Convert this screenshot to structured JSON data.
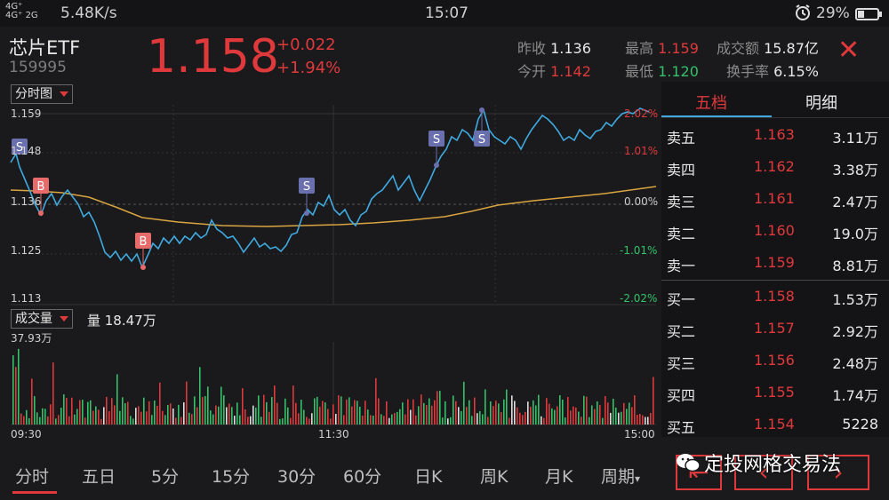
{
  "status_bar": {
    "signal": "4G⁺ 4G⁺ 2G",
    "speed": "5.48K/s",
    "time": "15:07",
    "alarm_icon": "alarm-icon",
    "battery": "29%"
  },
  "header": {
    "name": "芯片ETF",
    "code": "159995",
    "price": "1.158",
    "change": "+0.022",
    "change_pct": "+1.94%",
    "prev_close_label": "昨收",
    "prev_close": "1.136",
    "open_label": "今开",
    "open": "1.142",
    "high_label": "最高",
    "high": "1.159",
    "low_label": "最低",
    "low": "1.120",
    "turnover_label": "成交额",
    "turnover": "15.87亿",
    "turnover_rate_label": "换手率",
    "turnover_rate": "6.15%"
  },
  "chart": {
    "mode_label": "分时图",
    "y_labels": [
      "1.159",
      "1.148",
      "1.136",
      "1.125",
      "1.113"
    ],
    "pct_labels": [
      "2.02%",
      "1.01%",
      "0.00%",
      "-1.01%",
      "-2.02%"
    ],
    "volume_label": "成交量",
    "volume_value": "量 18.47万",
    "volume_max": "37.93万",
    "time_labels": [
      "09:30",
      "11:30",
      "15:00"
    ],
    "markers": [
      {
        "label": "S",
        "type": "sell"
      },
      {
        "label": "B",
        "type": "buy"
      },
      {
        "label": "B",
        "type": "buy"
      },
      {
        "label": "S",
        "type": "sell"
      },
      {
        "label": "S",
        "type": "sell"
      },
      {
        "label": "S",
        "type": "sell"
      }
    ]
  },
  "order_book": {
    "tab_active": "五档",
    "tab_other": "明细",
    "rows": [
      {
        "label": "卖五",
        "price": "1.163",
        "vol": "3.11万"
      },
      {
        "label": "卖四",
        "price": "1.162",
        "vol": "3.38万"
      },
      {
        "label": "卖三",
        "price": "1.161",
        "vol": "2.47万"
      },
      {
        "label": "卖二",
        "price": "1.160",
        "vol": "19.0万"
      },
      {
        "label": "卖一",
        "price": "1.159",
        "vol": "8.81万"
      },
      {
        "label": "买一",
        "price": "1.158",
        "vol": "1.53万"
      },
      {
        "label": "买二",
        "price": "1.157",
        "vol": "2.92万"
      },
      {
        "label": "买三",
        "price": "1.156",
        "vol": "2.48万"
      },
      {
        "label": "买四",
        "price": "1.155",
        "vol": "1.74万"
      },
      {
        "label": "买五",
        "price": "1.154",
        "vol": "5228"
      }
    ]
  },
  "bottom_nav": {
    "items": [
      "分时",
      "五日",
      "5分",
      "15分",
      "30分",
      "60分",
      "日K",
      "周K",
      "月K",
      "周期"
    ],
    "active": "分时"
  },
  "watermark": "定投网格交易法",
  "colors": {
    "up": "#e0393c",
    "down": "#33c26a",
    "price_line": "#3fa9e0",
    "avg_line": "#d9a441",
    "background": "#1a1a1c"
  }
}
